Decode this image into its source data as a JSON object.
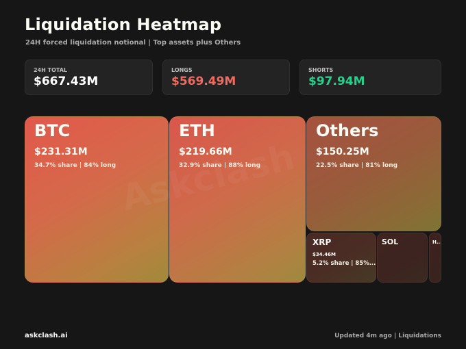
{
  "header": {
    "title": "Liquidation Heatmap",
    "subtitle": "24H forced liquidation notional | Top assets plus Others"
  },
  "stats": [
    {
      "label": "24H TOTAL",
      "value": "$667.43M",
      "color": "#ffffff"
    },
    {
      "label": "LONGS",
      "value": "$569.49M",
      "color": "#f26a5e"
    },
    {
      "label": "SHORTS",
      "value": "$97.94M",
      "color": "#22d38c"
    }
  ],
  "tiles": {
    "btc": {
      "name": "BTC",
      "amount": "$231.31M",
      "meta": "34.7% share | 84% long"
    },
    "eth": {
      "name": "ETH",
      "amount": "$219.66M",
      "meta": "32.9% share | 88% long"
    },
    "others": {
      "name": "Others",
      "amount": "$150.25M",
      "meta": "22.5% share | 81% long"
    },
    "xrp": {
      "name": "XRP",
      "amount": "$34.46M",
      "meta": "5.2% share | 85%..."
    },
    "sol": {
      "name": "SOL"
    },
    "hype": {
      "name": "H..."
    }
  },
  "watermark": "Askclash",
  "footer": {
    "brand": "askclash.ai",
    "note": "Updated 4m ago | Liquidations"
  }
}
